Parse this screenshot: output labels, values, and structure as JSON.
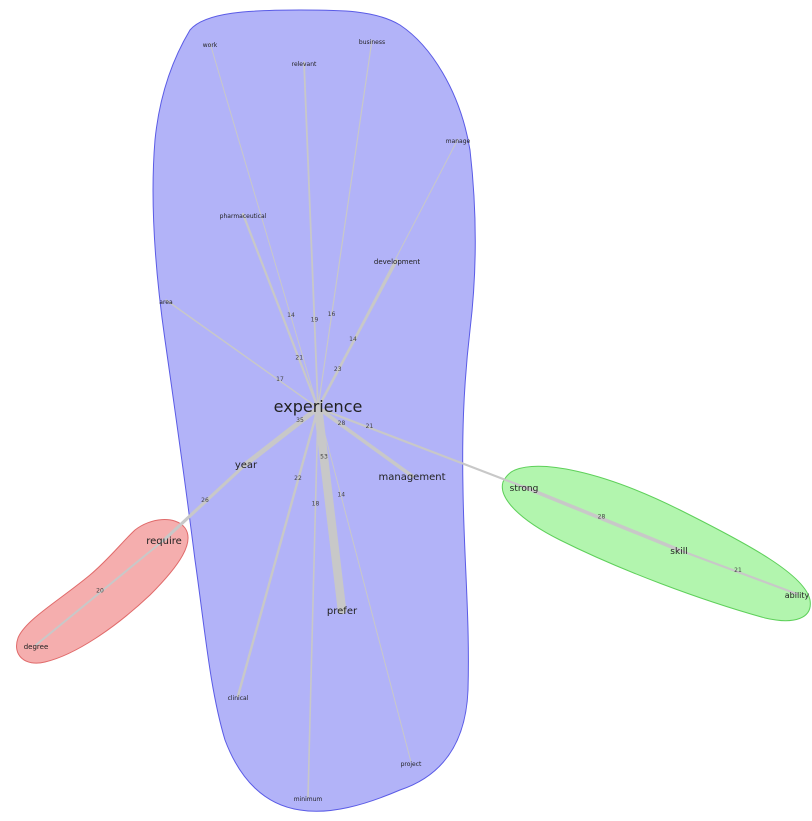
{
  "clusters": [
    {
      "id": "experience-cluster",
      "color": "#9fa0f6",
      "stroke": "#5a5be6",
      "members": [
        "experience",
        "work",
        "relevant",
        "business",
        "manage",
        "pharmaceutical",
        "development",
        "area",
        "year",
        "management",
        "prefer",
        "clinical",
        "minimum",
        "project"
      ]
    },
    {
      "id": "require-cluster",
      "color": "#f39a9a",
      "stroke": "#e06a6a",
      "members": [
        "require",
        "degree"
      ]
    },
    {
      "id": "strong-cluster",
      "color": "#9ff39a",
      "stroke": "#5ed05a",
      "members": [
        "strong",
        "skill",
        "ability"
      ]
    }
  ],
  "nodes": [
    {
      "id": "experience",
      "label": "experience"
    },
    {
      "id": "work",
      "label": "work"
    },
    {
      "id": "relevant",
      "label": "relevant"
    },
    {
      "id": "business",
      "label": "business"
    },
    {
      "id": "manage",
      "label": "manage"
    },
    {
      "id": "pharmaceutical",
      "label": "pharmaceutical"
    },
    {
      "id": "development",
      "label": "development"
    },
    {
      "id": "area",
      "label": "area"
    },
    {
      "id": "year",
      "label": "year"
    },
    {
      "id": "management",
      "label": "management"
    },
    {
      "id": "require",
      "label": "require"
    },
    {
      "id": "degree",
      "label": "degree"
    },
    {
      "id": "prefer",
      "label": "prefer"
    },
    {
      "id": "clinical",
      "label": "clinical"
    },
    {
      "id": "minimum",
      "label": "minimum"
    },
    {
      "id": "project",
      "label": "project"
    },
    {
      "id": "strong",
      "label": "strong"
    },
    {
      "id": "skill",
      "label": "skill"
    },
    {
      "id": "ability",
      "label": "ability"
    }
  ],
  "edges": [
    {
      "source": "experience",
      "target": "work",
      "weight": "14"
    },
    {
      "source": "experience",
      "target": "relevant",
      "weight": "19"
    },
    {
      "source": "experience",
      "target": "business",
      "weight": "16"
    },
    {
      "source": "experience",
      "target": "manage",
      "weight": "14"
    },
    {
      "source": "experience",
      "target": "pharmaceutical",
      "weight": "21"
    },
    {
      "source": "experience",
      "target": "development",
      "weight": "23"
    },
    {
      "source": "experience",
      "target": "area",
      "weight": "17"
    },
    {
      "source": "experience",
      "target": "year",
      "weight": "35"
    },
    {
      "source": "experience",
      "target": "management",
      "weight": "28"
    },
    {
      "source": "experience",
      "target": "strong",
      "weight": "21"
    },
    {
      "source": "experience",
      "target": "prefer",
      "weight": "53"
    },
    {
      "source": "experience",
      "target": "clinical",
      "weight": "22"
    },
    {
      "source": "experience",
      "target": "minimum",
      "weight": "18"
    },
    {
      "source": "experience",
      "target": "project",
      "weight": "14"
    },
    {
      "source": "year",
      "target": "require",
      "weight": "26"
    },
    {
      "source": "require",
      "target": "degree",
      "weight": "20"
    },
    {
      "source": "strong",
      "target": "skill",
      "weight": "28"
    },
    {
      "source": "skill",
      "target": "ability",
      "weight": "21"
    }
  ]
}
